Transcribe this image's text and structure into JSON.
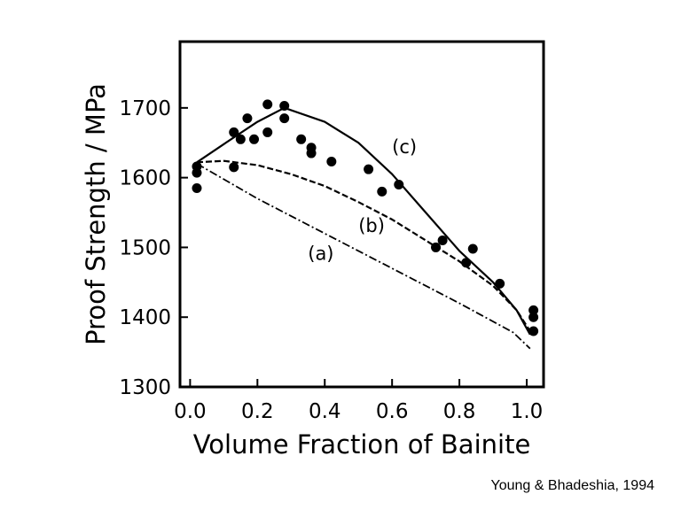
{
  "chart_data": {
    "type": "scatter",
    "title": "",
    "xlabel": "Volume Fraction of Bainite",
    "ylabel": "Proof Strength / MPa",
    "xlim": [
      -0.03,
      1.05
    ],
    "ylim": [
      1300,
      1795
    ],
    "x_ticks": [
      0.0,
      0.2,
      0.4,
      0.6,
      0.8,
      1.0
    ],
    "x_tick_labels": [
      "0.0",
      "0.2",
      "0.4",
      "0.6",
      "0.8",
      "1.0"
    ],
    "y_ticks": [
      1300,
      1400,
      1500,
      1600,
      1700
    ],
    "y_tick_labels": [
      "1300",
      "1400",
      "1500",
      "1600",
      "1700"
    ],
    "grid": false,
    "points": [
      {
        "x": 0.02,
        "y": 1616
      },
      {
        "x": 0.02,
        "y": 1607
      },
      {
        "x": 0.02,
        "y": 1585
      },
      {
        "x": 0.13,
        "y": 1665
      },
      {
        "x": 0.13,
        "y": 1615
      },
      {
        "x": 0.15,
        "y": 1655
      },
      {
        "x": 0.17,
        "y": 1685
      },
      {
        "x": 0.19,
        "y": 1655
      },
      {
        "x": 0.23,
        "y": 1705
      },
      {
        "x": 0.23,
        "y": 1665
      },
      {
        "x": 0.28,
        "y": 1703
      },
      {
        "x": 0.28,
        "y": 1685
      },
      {
        "x": 0.33,
        "y": 1655
      },
      {
        "x": 0.36,
        "y": 1643
      },
      {
        "x": 0.36,
        "y": 1635
      },
      {
        "x": 0.42,
        "y": 1623
      },
      {
        "x": 0.53,
        "y": 1612
      },
      {
        "x": 0.57,
        "y": 1580
      },
      {
        "x": 0.62,
        "y": 1590
      },
      {
        "x": 0.73,
        "y": 1500
      },
      {
        "x": 0.75,
        "y": 1510
      },
      {
        "x": 0.82,
        "y": 1478
      },
      {
        "x": 0.84,
        "y": 1498
      },
      {
        "x": 0.92,
        "y": 1448
      },
      {
        "x": 1.02,
        "y": 1410
      },
      {
        "x": 1.02,
        "y": 1400
      },
      {
        "x": 1.02,
        "y": 1380
      }
    ],
    "curves": [
      {
        "name": "(c)",
        "label_pos": {
          "x": 0.6,
          "y": 1635
        },
        "points": [
          [
            0.02,
            1622
          ],
          [
            0.1,
            1648
          ],
          [
            0.2,
            1680
          ],
          [
            0.28,
            1700
          ],
          [
            0.4,
            1680
          ],
          [
            0.5,
            1650
          ],
          [
            0.6,
            1605
          ],
          [
            0.7,
            1550
          ],
          [
            0.8,
            1495
          ],
          [
            0.9,
            1450
          ],
          [
            0.97,
            1410
          ],
          [
            1.01,
            1375
          ]
        ]
      },
      {
        "name": "(b)",
        "label_pos": {
          "x": 0.5,
          "y": 1522
        },
        "points": [
          [
            0.02,
            1622
          ],
          [
            0.1,
            1624
          ],
          [
            0.2,
            1618
          ],
          [
            0.3,
            1605
          ],
          [
            0.4,
            1588
          ],
          [
            0.5,
            1565
          ],
          [
            0.6,
            1540
          ],
          [
            0.7,
            1510
          ],
          [
            0.8,
            1480
          ],
          [
            0.9,
            1445
          ],
          [
            0.97,
            1410
          ],
          [
            1.01,
            1380
          ]
        ]
      },
      {
        "name": "(a)",
        "label_pos": {
          "x": 0.35,
          "y": 1482
        },
        "points": [
          [
            0.02,
            1620
          ],
          [
            0.2,
            1570
          ],
          [
            0.4,
            1520
          ],
          [
            0.6,
            1470
          ],
          [
            0.8,
            1420
          ],
          [
            0.96,
            1378
          ],
          [
            1.01,
            1355
          ]
        ]
      }
    ]
  },
  "credit": "Young & Bhadeshia, 1994"
}
